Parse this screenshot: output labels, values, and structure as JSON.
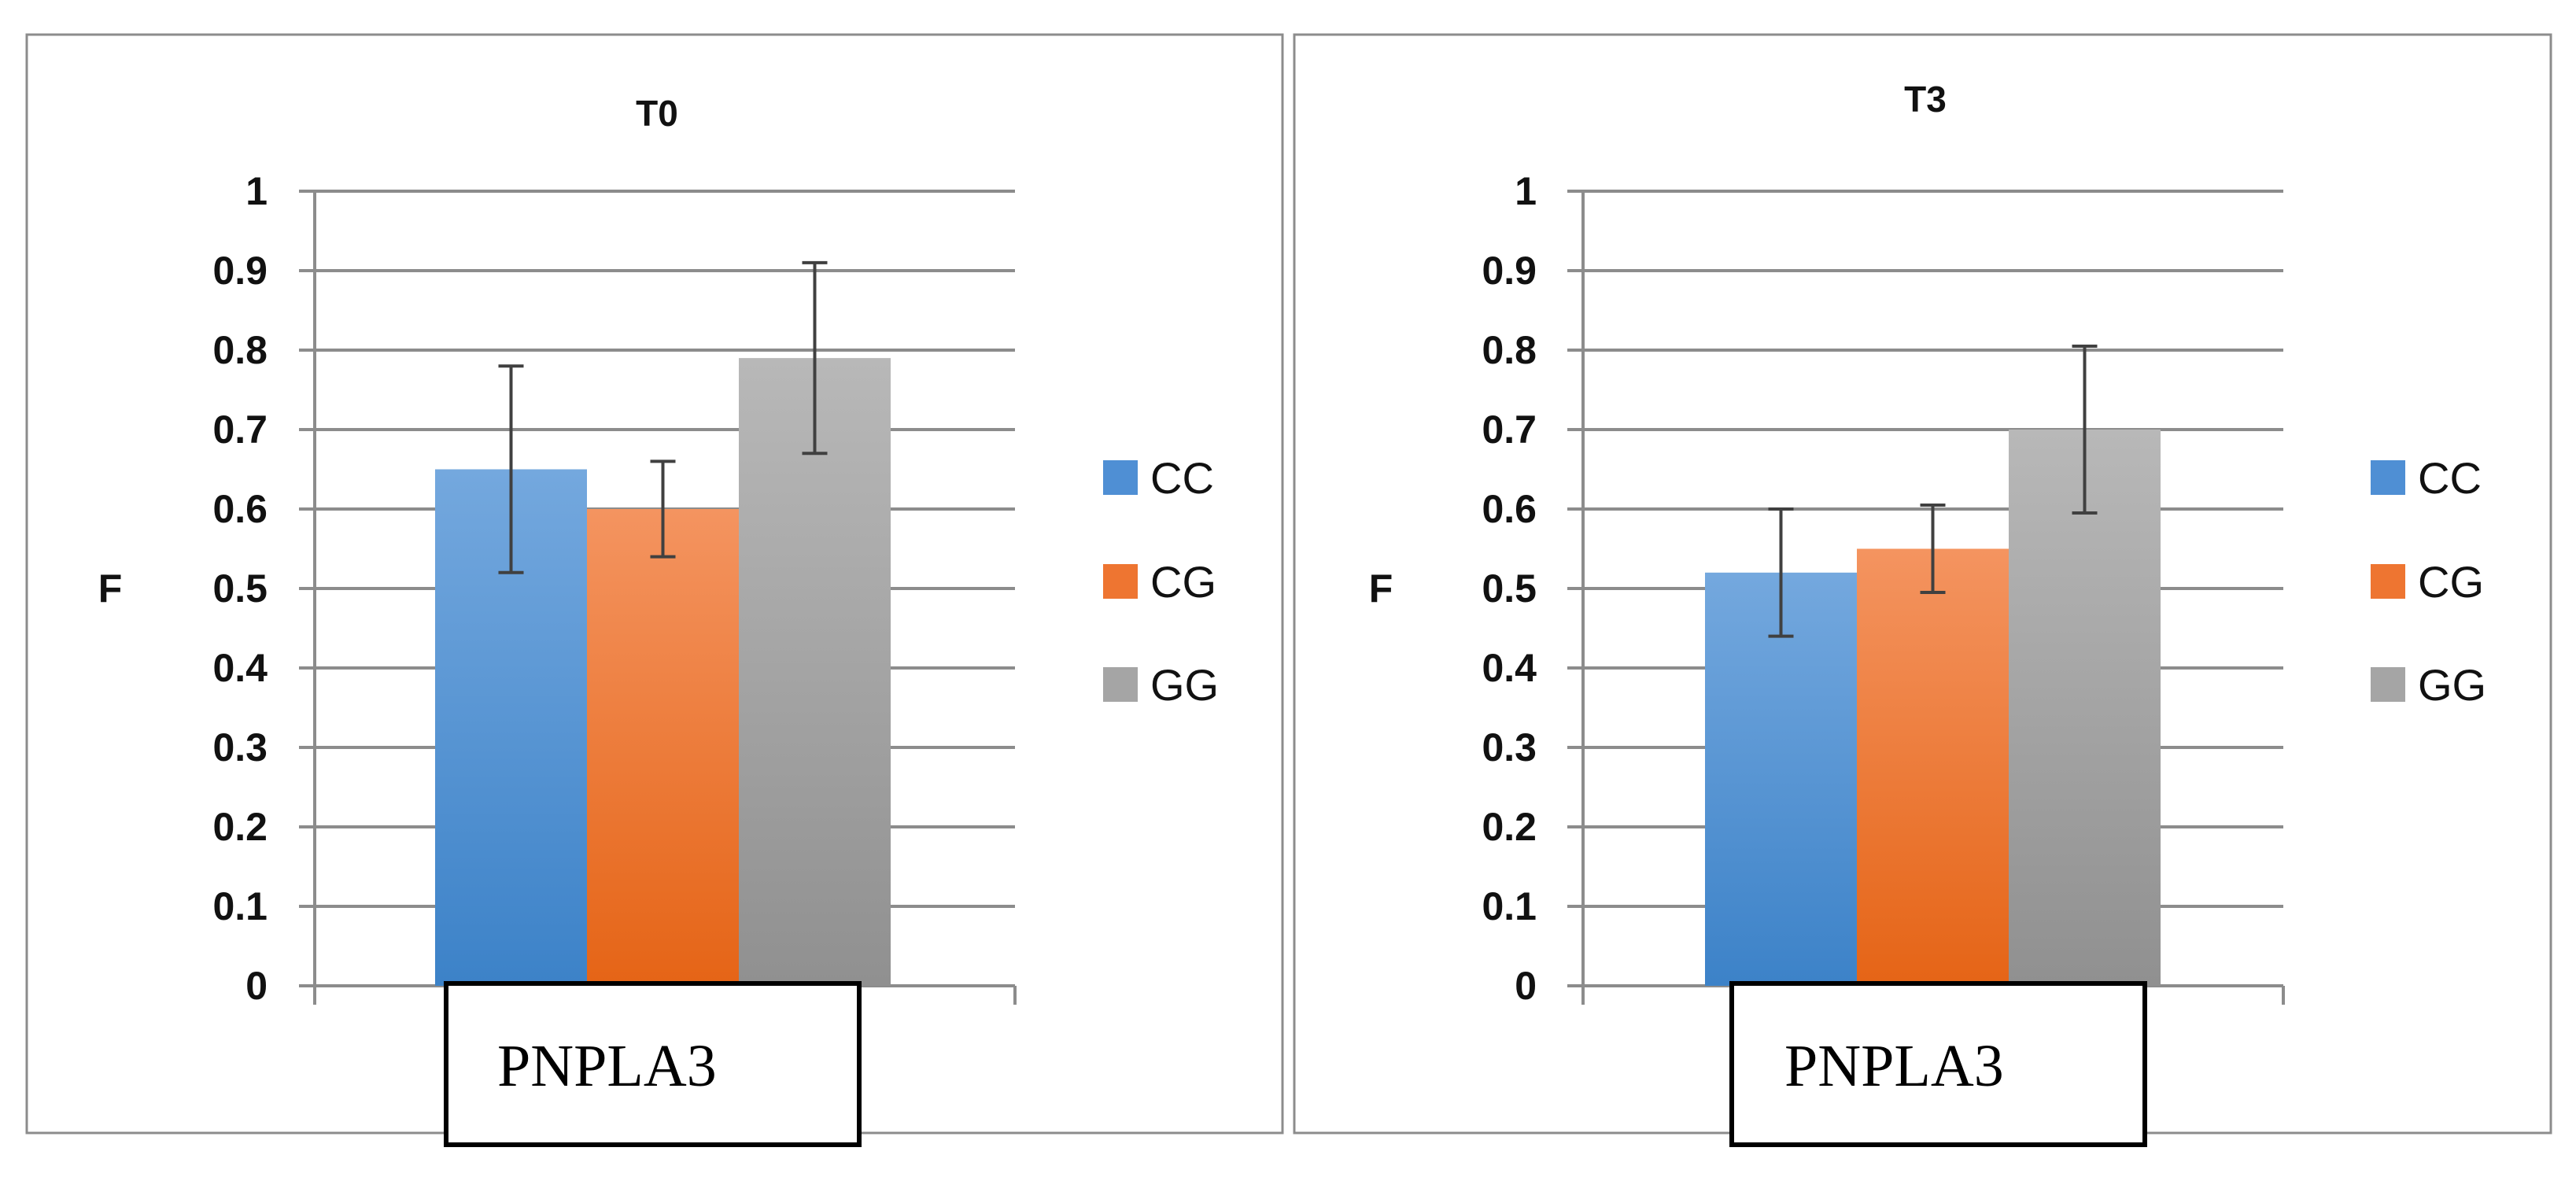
{
  "chart_data": [
    {
      "type": "bar",
      "title": "T0",
      "ylabel": "F",
      "xlabel": "PNPLA3",
      "ylim": [
        0,
        1
      ],
      "yticks": [
        "0",
        "0.1",
        "0.2",
        "0.3",
        "0.4",
        "0.5",
        "0.6",
        "0.7",
        "0.8",
        "0.9",
        "1"
      ],
      "grid": true,
      "legend_position": "right",
      "categories": [
        "PNPLA3"
      ],
      "series": [
        {
          "name": "CC",
          "values": [
            0.65
          ],
          "error": [
            0.13
          ]
        },
        {
          "name": "CG",
          "values": [
            0.6
          ],
          "error": [
            0.06
          ]
        },
        {
          "name": "GG",
          "values": [
            0.79
          ],
          "error": [
            0.12
          ]
        }
      ]
    },
    {
      "type": "bar",
      "title": "T3",
      "ylabel": "F",
      "xlabel": "PNPLA3",
      "ylim": [
        0,
        1
      ],
      "yticks": [
        "0",
        "0.1",
        "0.2",
        "0.3",
        "0.4",
        "0.5",
        "0.6",
        "0.7",
        "0.8",
        "0.9",
        "1"
      ],
      "grid": true,
      "legend_position": "right",
      "categories": [
        "PNPLA3"
      ],
      "series": [
        {
          "name": "CC",
          "values": [
            0.52
          ],
          "error": [
            0.08
          ]
        },
        {
          "name": "CG",
          "values": [
            0.55
          ],
          "error": [
            0.055
          ]
        },
        {
          "name": "GG",
          "values": [
            0.7
          ],
          "error": [
            0.105
          ]
        }
      ]
    }
  ],
  "colors": {
    "CC_top": "#74a8de",
    "CC_bottom": "#3c82c8",
    "CG_top": "#f49460",
    "CG_bottom": "#e56416",
    "GG_top": "#b8b8b8",
    "GG_bottom": "#909090",
    "legend_CC": "#4f8fd4",
    "legend_CG": "#ee7531",
    "legend_GG": "#a5a5a5",
    "grid": "#8c8c8c",
    "frame": "#8c8c8c",
    "error_bar": "#404040"
  }
}
